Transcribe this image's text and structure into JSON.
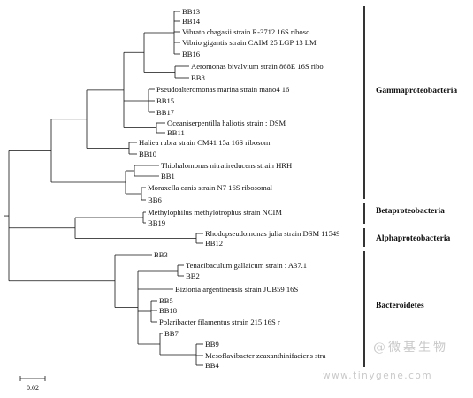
{
  "leaves": [
    "BB13",
    "BB14",
    "Vibrato chagasii strain R-3712 16S riboso",
    "Vibrio gigantis strain CAIM 25 LGP 13 LM",
    "BB16",
    "Aeromonas bivalvium strain 868E 16S ribo",
    "BB8",
    "Pseudoalteromonas marina strain mano4 16",
    "BB15",
    "BB17",
    "Oceaniserpentilla haliotis strain : DSM",
    "BB11",
    "Haliea rubra strain CM41 15a 16S ribosom",
    "BB10",
    "Thiohalomonas nitratireducens strain HRH",
    "BB1",
    "Moraxella canis strain N7 16S ribosomal",
    "BB6",
    "Methylophilus methylotrophus strain NCIM",
    "BB19",
    "Rhodopseudomonas julia strain DSM 11549",
    "BB12",
    "BB3",
    "Tenacibaculum gallaicum strain : A37.1",
    "BB2",
    "Bizionia argentinensis strain JUB59 16S",
    "BB5",
    "BB18",
    "Polaribacter filamentus strain 215 16S r",
    "BB7",
    "BB9",
    "Mesoflavibacter zeaxanthinifaciens stra",
    "BB4"
  ],
  "groups": [
    "Gammaproteobacteria",
    "Betaproteobacteria",
    "Alphaproteobacteria",
    "Bacteroidetes"
  ],
  "scale_label": "0.02",
  "watermark": {
    "logo_text": "@微基生物",
    "url": "www.tinygene.com"
  }
}
